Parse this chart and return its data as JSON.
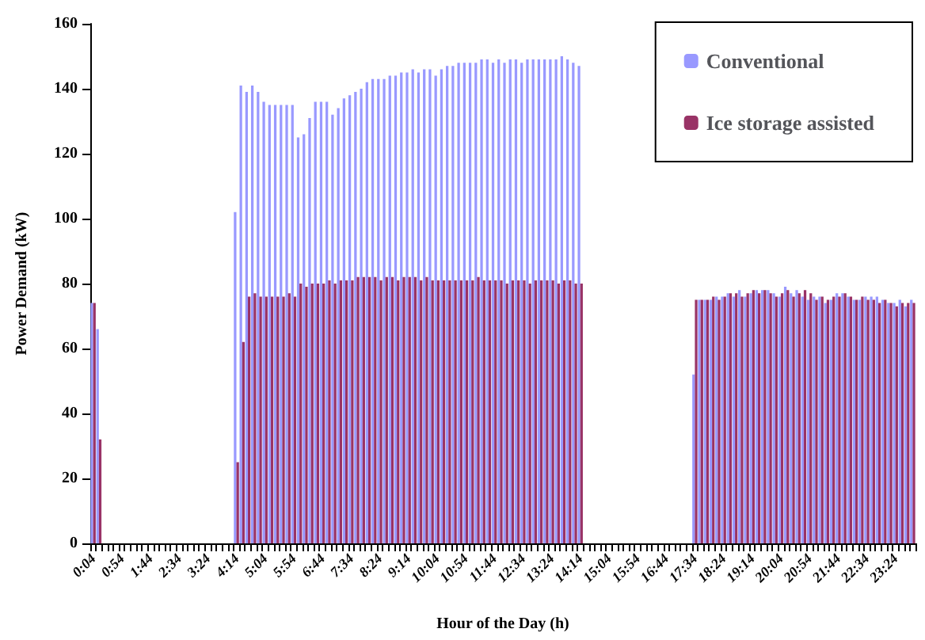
{
  "chart_data": {
    "type": "bar",
    "xlabel": "Hour of the Day (h)",
    "ylabel": "Power Demand (kW)",
    "categories": [
      "0:04",
      null,
      null,
      null,
      null,
      "0:54",
      null,
      null,
      null,
      null,
      "1:44",
      null,
      null,
      null,
      null,
      "2:34",
      null,
      null,
      null,
      null,
      "3:24",
      null,
      null,
      null,
      null,
      "4:14",
      null,
      null,
      null,
      null,
      "5:04",
      null,
      null,
      null,
      null,
      "5:54",
      null,
      null,
      null,
      null,
      "6:44",
      null,
      null,
      null,
      null,
      "7:34",
      null,
      null,
      null,
      null,
      "8:24",
      null,
      null,
      null,
      null,
      "9:14",
      null,
      null,
      null,
      null,
      "10:04",
      null,
      null,
      null,
      null,
      "10:54",
      null,
      null,
      null,
      null,
      "11:44",
      null,
      null,
      null,
      null,
      "12:34",
      null,
      null,
      null,
      null,
      "13:24",
      null,
      null,
      null,
      null,
      "14:14",
      null,
      null,
      null,
      null,
      "15:04",
      null,
      null,
      null,
      null,
      "15:54",
      null,
      null,
      null,
      null,
      "16:44",
      null,
      null,
      null,
      null,
      "17:34",
      null,
      null,
      null,
      null,
      "18:24",
      null,
      null,
      null,
      null,
      "19:14",
      null,
      null,
      null,
      null,
      "20:04",
      null,
      null,
      null,
      null,
      "20:54",
      null,
      null,
      null,
      null,
      "21:44",
      null,
      null,
      null,
      null,
      "22:34",
      null,
      null,
      null,
      null,
      "23:24",
      null,
      null,
      null
    ],
    "series": [
      {
        "name": "Conventional",
        "color": "#9999ff",
        "values": [
          74,
          66,
          0,
          0,
          0,
          0,
          0,
          0,
          0,
          0,
          0,
          0,
          0,
          0,
          0,
          0,
          0,
          0,
          0,
          0,
          0,
          0,
          0,
          0,
          0,
          102,
          141,
          139,
          141,
          139,
          136,
          135,
          135,
          135,
          135,
          135,
          125,
          126,
          131,
          136,
          136,
          136,
          132,
          134,
          137,
          138,
          139,
          140,
          142,
          143,
          143,
          143,
          144,
          144,
          145,
          145,
          146,
          145,
          146,
          146,
          144,
          146,
          147,
          147,
          148,
          148,
          148,
          148,
          149,
          149,
          148,
          149,
          148,
          149,
          149,
          148,
          149,
          149,
          149,
          149,
          149,
          149,
          150,
          149,
          148,
          147,
          0,
          0,
          0,
          0,
          0,
          0,
          0,
          0,
          0,
          0,
          0,
          0,
          0,
          0,
          0,
          0,
          0,
          0,
          0,
          52,
          75,
          75,
          75,
          76,
          76,
          77,
          76,
          78,
          76,
          77,
          78,
          78,
          78,
          77,
          76,
          79,
          77,
          78,
          76,
          75,
          76,
          76,
          74,
          75,
          77,
          77,
          76,
          75,
          75,
          76,
          76,
          76,
          75,
          74,
          74,
          75,
          73,
          75
        ]
      },
      {
        "name": "Ice storage assisted",
        "color": "#993366",
        "values": [
          74,
          32,
          0,
          0,
          0,
          0,
          0,
          0,
          0,
          0,
          0,
          0,
          0,
          0,
          0,
          0,
          0,
          0,
          0,
          0,
          0,
          0,
          0,
          0,
          0,
          25,
          62,
          76,
          77,
          76,
          76,
          76,
          76,
          76,
          77,
          76,
          80,
          79,
          80,
          80,
          80,
          81,
          80,
          81,
          81,
          81,
          82,
          82,
          82,
          82,
          81,
          82,
          82,
          81,
          82,
          82,
          82,
          81,
          82,
          81,
          81,
          81,
          81,
          81,
          81,
          81,
          81,
          82,
          81,
          81,
          81,
          81,
          80,
          81,
          81,
          81,
          80,
          81,
          81,
          81,
          81,
          80,
          81,
          81,
          80,
          80,
          0,
          0,
          0,
          0,
          0,
          0,
          0,
          0,
          0,
          0,
          0,
          0,
          0,
          0,
          0,
          0,
          0,
          0,
          0,
          75,
          75,
          75,
          76,
          75,
          76,
          77,
          77,
          76,
          77,
          78,
          77,
          78,
          77,
          76,
          77,
          78,
          76,
          77,
          78,
          77,
          75,
          76,
          75,
          76,
          76,
          77,
          76,
          75,
          76,
          75,
          75,
          74,
          75,
          74,
          73,
          74,
          74,
          74
        ]
      }
    ],
    "ylim": [
      0,
      160
    ],
    "yticks": [
      0,
      20,
      40,
      60,
      80,
      100,
      120,
      140,
      160
    ],
    "legend": "top right",
    "grid": false
  }
}
